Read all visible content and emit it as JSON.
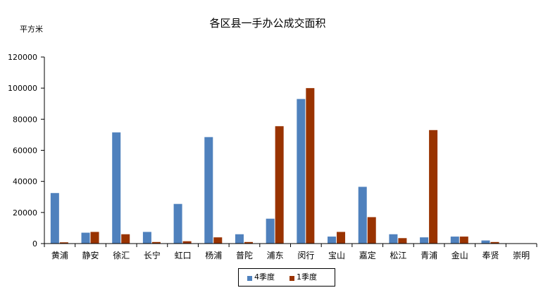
{
  "chart_data": {
    "type": "bar",
    "title": "各区县一手办公成交面积",
    "ylabel": "平方米",
    "xlabel": "",
    "ylim": [
      0,
      120000
    ],
    "yticks": [
      0,
      20000,
      40000,
      60000,
      80000,
      100000,
      120000
    ],
    "grid": false,
    "legend_position": "bottom",
    "categories": [
      "黄浦",
      "静安",
      "徐汇",
      "长宁",
      "虹口",
      "杨浦",
      "普陀",
      "浦东",
      "闵行",
      "宝山",
      "嘉定",
      "松江",
      "青浦",
      "金山",
      "奉贤",
      "崇明"
    ],
    "series": [
      {
        "name": "4季度",
        "color": "#4f81bd",
        "values": [
          32500,
          7000,
          71500,
          7500,
          25500,
          68500,
          6000,
          16000,
          93000,
          4500,
          36500,
          6000,
          4000,
          4500,
          2000,
          0
        ]
      },
      {
        "name": "1季度",
        "color": "#993300",
        "values": [
          800,
          7500,
          6000,
          1000,
          1500,
          4000,
          1000,
          75500,
          100000,
          7500,
          17000,
          3500,
          73000,
          4500,
          1000,
          0
        ]
      }
    ]
  }
}
